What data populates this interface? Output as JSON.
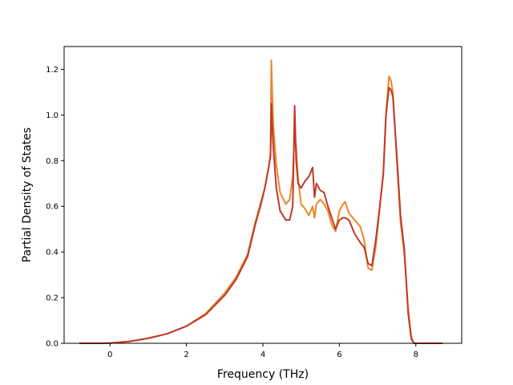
{
  "chart_data": {
    "type": "line",
    "title": "",
    "xlabel": "Frequency (THz)",
    "ylabel": "Partial Density of States",
    "xlim": [
      -1.2,
      9.2
    ],
    "ylim": [
      0.0,
      1.3
    ],
    "xticks": [
      0,
      2,
      4,
      6,
      8
    ],
    "yticks": [
      0.0,
      0.2,
      0.4,
      0.6,
      0.8,
      1.0,
      1.2
    ],
    "xtick_labels": [
      "0",
      "2",
      "4",
      "6",
      "8"
    ],
    "ytick_labels": [
      "0.0",
      "0.2",
      "0.4",
      "0.6",
      "0.8",
      "1.0",
      "1.2"
    ],
    "grid": false,
    "legend": "none",
    "series": [
      {
        "color": "#e6892b",
        "x": [
          -0.8,
          -0.2,
          0.0,
          0.5,
          1.0,
          1.5,
          2.0,
          2.5,
          3.0,
          3.3,
          3.6,
          3.8,
          3.95,
          4.05,
          4.15,
          4.2,
          4.22,
          4.27,
          4.35,
          4.45,
          4.6,
          4.7,
          4.78,
          4.83,
          4.87,
          4.92,
          5.0,
          5.1,
          5.2,
          5.3,
          5.35,
          5.4,
          5.5,
          5.6,
          5.7,
          5.8,
          5.9,
          6.0,
          6.1,
          6.15,
          6.25,
          6.4,
          6.55,
          6.65,
          6.75,
          6.85,
          6.95,
          7.05,
          7.15,
          7.22,
          7.3,
          7.35,
          7.4,
          7.5,
          7.6,
          7.7,
          7.8,
          7.88,
          7.95,
          8.0,
          8.3,
          8.7
        ],
        "y": [
          0.0,
          0.0,
          0.001,
          0.008,
          0.022,
          0.042,
          0.075,
          0.13,
          0.22,
          0.29,
          0.39,
          0.53,
          0.62,
          0.68,
          0.77,
          0.84,
          1.24,
          0.96,
          0.78,
          0.66,
          0.61,
          0.63,
          0.73,
          0.92,
          0.86,
          0.72,
          0.61,
          0.59,
          0.56,
          0.6,
          0.55,
          0.61,
          0.63,
          0.61,
          0.58,
          0.52,
          0.49,
          0.58,
          0.61,
          0.62,
          0.57,
          0.54,
          0.51,
          0.45,
          0.33,
          0.32,
          0.42,
          0.58,
          0.75,
          1.01,
          1.17,
          1.15,
          1.1,
          0.81,
          0.53,
          0.39,
          0.15,
          0.03,
          0.0,
          0.0,
          0.0,
          0.0
        ]
      },
      {
        "color": "#c0392b",
        "x": [
          -0.8,
          -0.2,
          0.0,
          0.5,
          1.0,
          1.5,
          2.0,
          2.5,
          3.0,
          3.3,
          3.6,
          3.8,
          3.95,
          4.05,
          4.15,
          4.2,
          4.22,
          4.27,
          4.35,
          4.45,
          4.6,
          4.7,
          4.78,
          4.83,
          4.87,
          4.92,
          5.0,
          5.1,
          5.2,
          5.3,
          5.35,
          5.4,
          5.5,
          5.6,
          5.7,
          5.8,
          5.9,
          6.0,
          6.1,
          6.15,
          6.25,
          6.4,
          6.55,
          6.65,
          6.75,
          6.85,
          6.95,
          7.05,
          7.15,
          7.22,
          7.3,
          7.35,
          7.4,
          7.5,
          7.6,
          7.7,
          7.8,
          7.88,
          7.95,
          8.0,
          8.3,
          8.7
        ],
        "y": [
          0.0,
          0.0,
          0.001,
          0.008,
          0.022,
          0.042,
          0.075,
          0.125,
          0.21,
          0.28,
          0.38,
          0.52,
          0.61,
          0.68,
          0.77,
          0.82,
          1.05,
          0.86,
          0.68,
          0.58,
          0.54,
          0.54,
          0.6,
          1.04,
          0.8,
          0.7,
          0.68,
          0.71,
          0.73,
          0.77,
          0.64,
          0.7,
          0.67,
          0.66,
          0.6,
          0.55,
          0.5,
          0.54,
          0.55,
          0.55,
          0.54,
          0.48,
          0.44,
          0.42,
          0.35,
          0.34,
          0.45,
          0.59,
          0.74,
          1.0,
          1.12,
          1.11,
          1.08,
          0.83,
          0.56,
          0.41,
          0.13,
          0.02,
          0.0,
          0.0,
          0.0,
          0.0
        ]
      }
    ]
  }
}
